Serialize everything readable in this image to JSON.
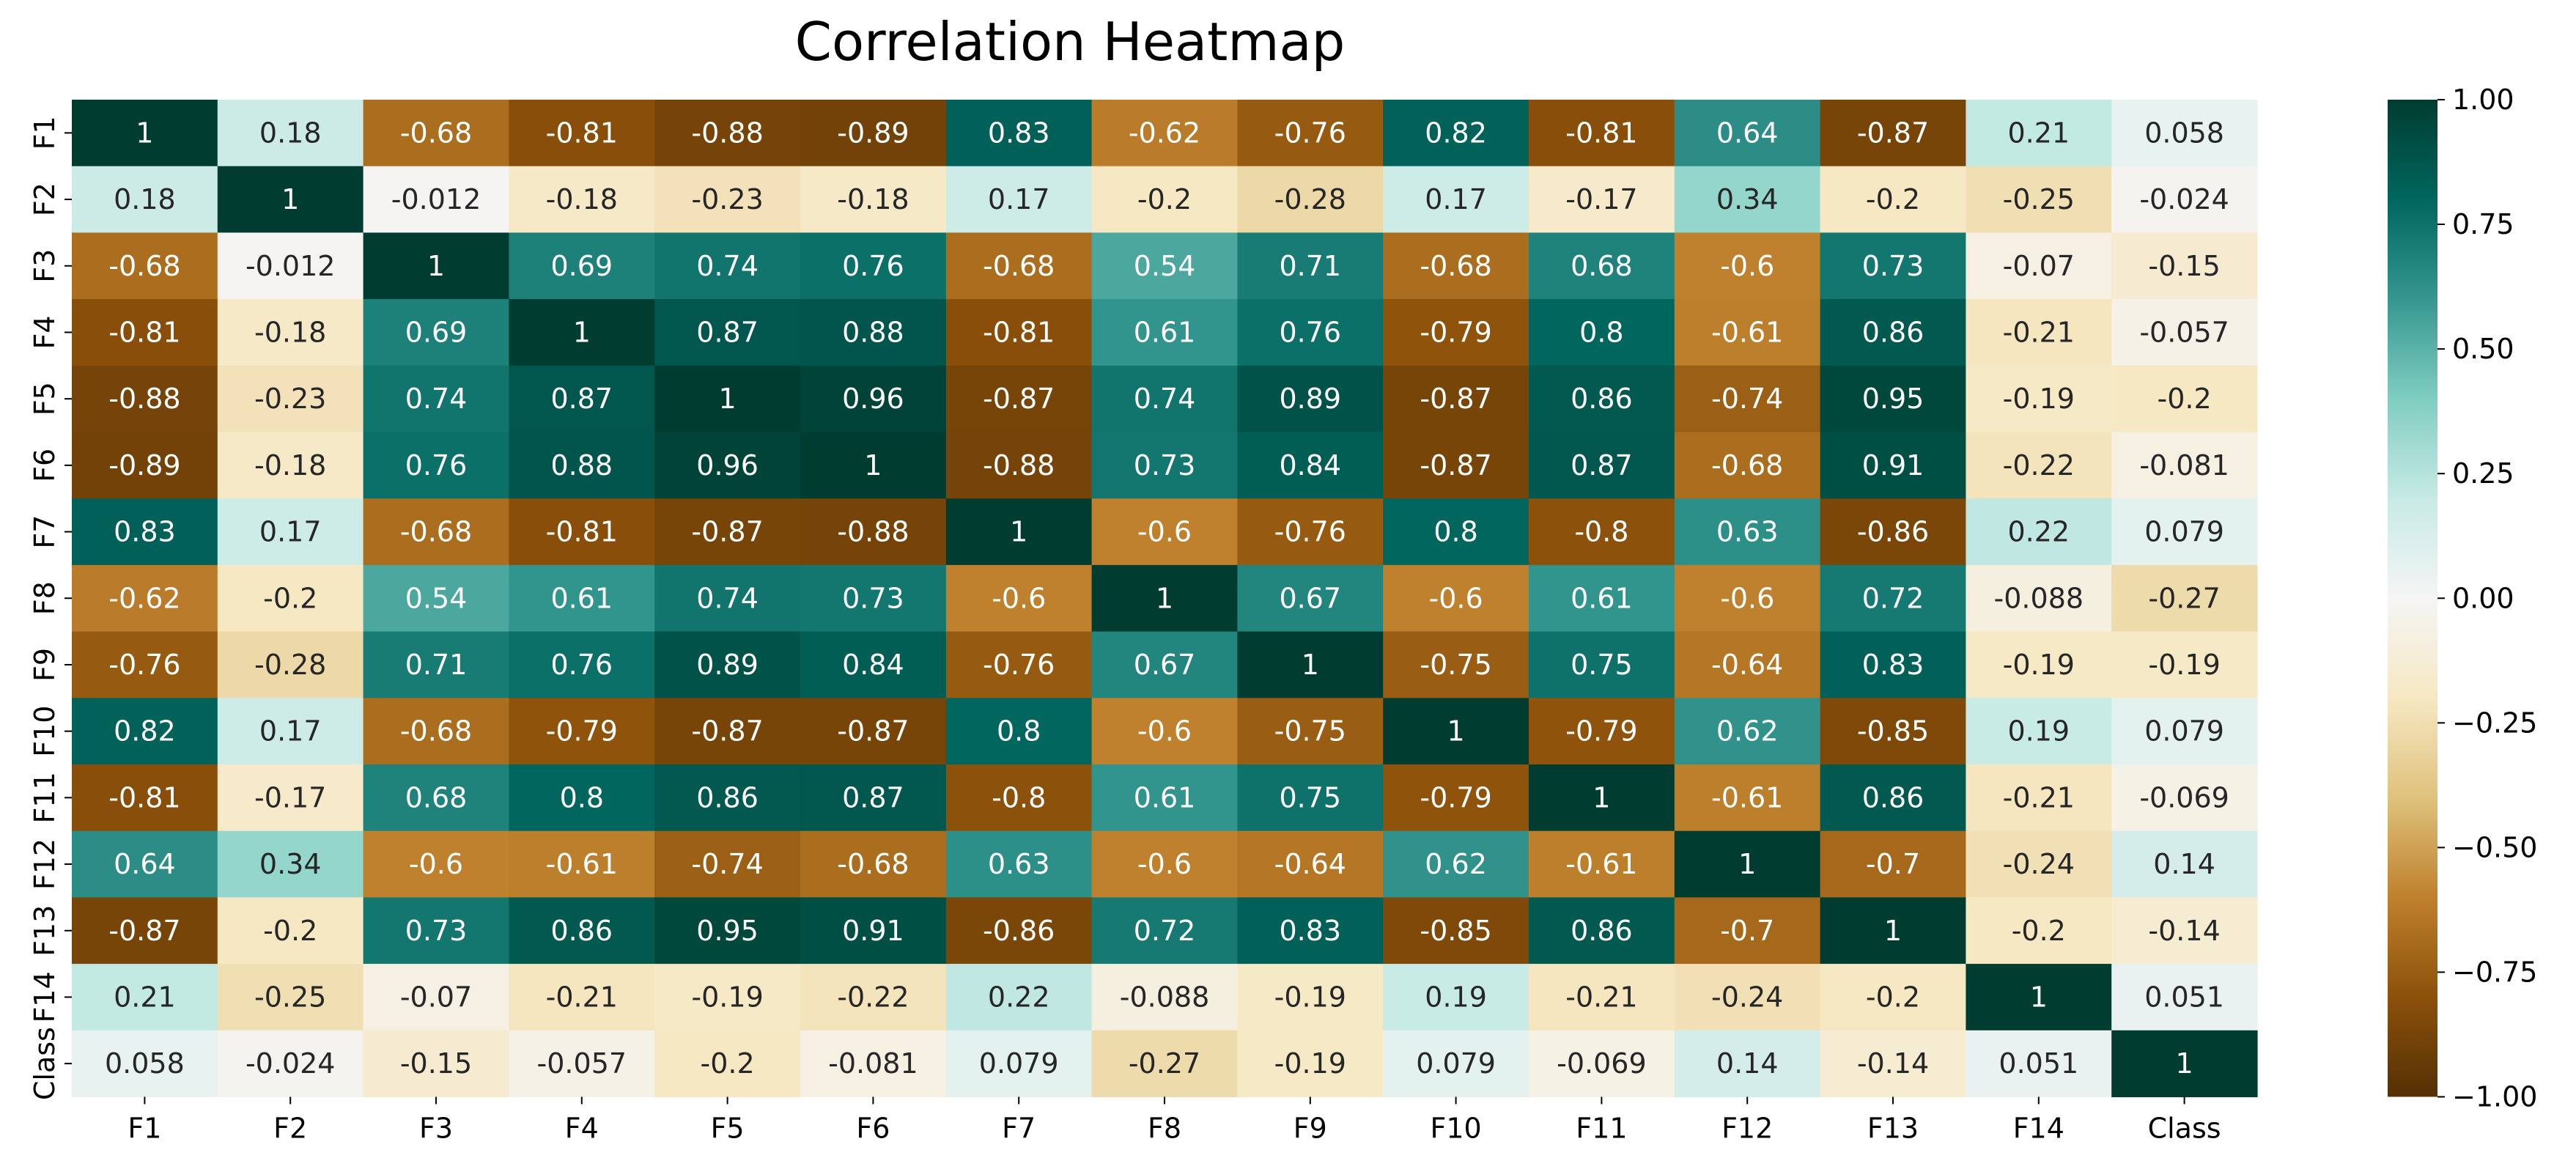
{
  "chart_data": {
    "type": "heatmap",
    "title": "Correlation Heatmap",
    "xlabel": "",
    "ylabel": "",
    "labels": [
      "F1",
      "F2",
      "F3",
      "F4",
      "F5",
      "F6",
      "F7",
      "F8",
      "F9",
      "F10",
      "F11",
      "F12",
      "F13",
      "F14",
      "Class"
    ],
    "matrix": [
      [
        "1",
        "0.18",
        "-0.68",
        "-0.81",
        "-0.88",
        "-0.89",
        "0.83",
        "-0.62",
        "-0.76",
        "0.82",
        "-0.81",
        "0.64",
        "-0.87",
        "0.21",
        "0.058"
      ],
      [
        "0.18",
        "1",
        "-0.012",
        "-0.18",
        "-0.23",
        "-0.18",
        "0.17",
        "-0.2",
        "-0.28",
        "0.17",
        "-0.17",
        "0.34",
        "-0.2",
        "-0.25",
        "-0.024"
      ],
      [
        "-0.68",
        "-0.012",
        "1",
        "0.69",
        "0.74",
        "0.76",
        "-0.68",
        "0.54",
        "0.71",
        "-0.68",
        "0.68",
        "-0.6",
        "0.73",
        "-0.07",
        "-0.15"
      ],
      [
        "-0.81",
        "-0.18",
        "0.69",
        "1",
        "0.87",
        "0.88",
        "-0.81",
        "0.61",
        "0.76",
        "-0.79",
        "0.8",
        "-0.61",
        "0.86",
        "-0.21",
        "-0.057"
      ],
      [
        "-0.88",
        "-0.23",
        "0.74",
        "0.87",
        "1",
        "0.96",
        "-0.87",
        "0.74",
        "0.89",
        "-0.87",
        "0.86",
        "-0.74",
        "0.95",
        "-0.19",
        "-0.2"
      ],
      [
        "-0.89",
        "-0.18",
        "0.76",
        "0.88",
        "0.96",
        "1",
        "-0.88",
        "0.73",
        "0.84",
        "-0.87",
        "0.87",
        "-0.68",
        "0.91",
        "-0.22",
        "-0.081"
      ],
      [
        "0.83",
        "0.17",
        "-0.68",
        "-0.81",
        "-0.87",
        "-0.88",
        "1",
        "-0.6",
        "-0.76",
        "0.8",
        "-0.8",
        "0.63",
        "-0.86",
        "0.22",
        "0.079"
      ],
      [
        "-0.62",
        "-0.2",
        "0.54",
        "0.61",
        "0.74",
        "0.73",
        "-0.6",
        "1",
        "0.67",
        "-0.6",
        "0.61",
        "-0.6",
        "0.72",
        "-0.088",
        "-0.27"
      ],
      [
        "-0.76",
        "-0.28",
        "0.71",
        "0.76",
        "0.89",
        "0.84",
        "-0.76",
        "0.67",
        "1",
        "-0.75",
        "0.75",
        "-0.64",
        "0.83",
        "-0.19",
        "-0.19"
      ],
      [
        "0.82",
        "0.17",
        "-0.68",
        "-0.79",
        "-0.87",
        "-0.87",
        "0.8",
        "-0.6",
        "-0.75",
        "1",
        "-0.79",
        "0.62",
        "-0.85",
        "0.19",
        "0.079"
      ],
      [
        "-0.81",
        "-0.17",
        "0.68",
        "0.8",
        "0.86",
        "0.87",
        "-0.8",
        "0.61",
        "0.75",
        "-0.79",
        "1",
        "-0.61",
        "0.86",
        "-0.21",
        "-0.069"
      ],
      [
        "0.64",
        "0.34",
        "-0.6",
        "-0.61",
        "-0.74",
        "-0.68",
        "0.63",
        "-0.6",
        "-0.64",
        "0.62",
        "-0.61",
        "1",
        "-0.7",
        "-0.24",
        "0.14"
      ],
      [
        "-0.87",
        "-0.2",
        "0.73",
        "0.86",
        "0.95",
        "0.91",
        "-0.86",
        "0.72",
        "0.83",
        "-0.85",
        "0.86",
        "-0.7",
        "1",
        "-0.2",
        "-0.14"
      ],
      [
        "0.21",
        "-0.25",
        "-0.07",
        "-0.21",
        "-0.19",
        "-0.22",
        "0.22",
        "-0.088",
        "-0.19",
        "0.19",
        "-0.21",
        "-0.24",
        "-0.2",
        "1",
        "0.051"
      ],
      [
        "0.058",
        "-0.024",
        "-0.15",
        "-0.057",
        "-0.2",
        "-0.081",
        "0.079",
        "-0.27",
        "-0.19",
        "0.079",
        "-0.069",
        "0.14",
        "-0.14",
        "0.051",
        "1"
      ]
    ],
    "colorbar": {
      "min": -1.0,
      "max": 1.0,
      "ticks": [
        "1.00",
        "0.75",
        "0.50",
        "0.25",
        "0.00",
        "−0.25",
        "−0.50",
        "−0.75",
        "−1.00"
      ],
      "colormap": "BrBG"
    },
    "grid": false,
    "legend": "colorbar-right"
  }
}
